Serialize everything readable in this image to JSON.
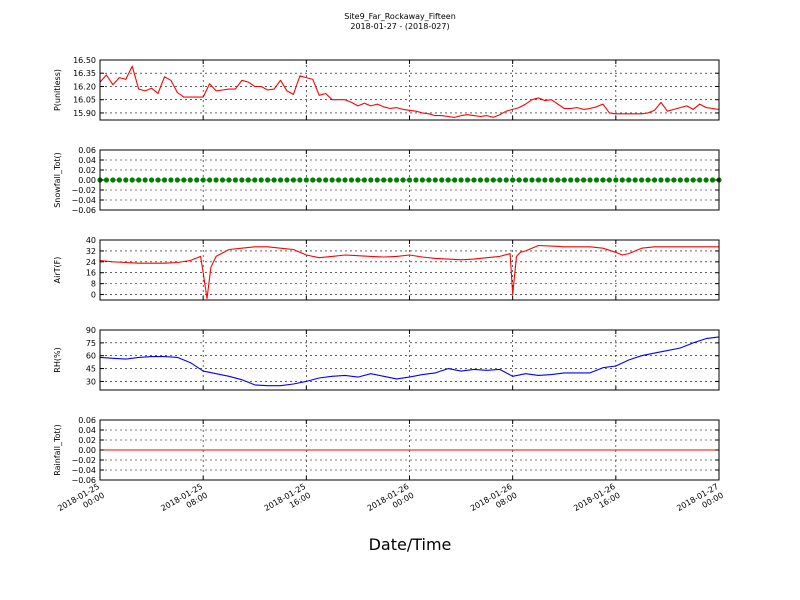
{
  "title": "Site9_Far_Rockaway_Fifteen",
  "subtitle": "2018-01-27 - (2018-027)",
  "xlabel": "Date/Time",
  "x_ticks": [
    [
      "2018-01-25",
      "00:00"
    ],
    [
      "2018-01-25",
      "08:00"
    ],
    [
      "2018-01-25",
      "16:00"
    ],
    [
      "2018-01-26",
      "00:00"
    ],
    [
      "2018-01-26",
      "08:00"
    ],
    [
      "2018-01-26",
      "16:00"
    ],
    [
      "2018-01-27",
      "00:00"
    ]
  ],
  "chart_data": [
    {
      "type": "line",
      "ylabel": "P(unitless)",
      "ylim": [
        15.82,
        16.5
      ],
      "yticks": [
        "16.50",
        "16.35",
        "16.20",
        "16.05",
        "15.90"
      ],
      "ytick_values": [
        16.5,
        16.35,
        16.2,
        16.05,
        15.9
      ],
      "color": "#ff0000",
      "marker": false,
      "grid": true,
      "x_hours": [
        0,
        0.5,
        1,
        1.5,
        2,
        2.5,
        3,
        3.5,
        4,
        4.5,
        5,
        5.5,
        6,
        6.5,
        7,
        7.5,
        8,
        8.5,
        9,
        9.5,
        10,
        10.5,
        11,
        11.5,
        12,
        12.5,
        13,
        13.5,
        14,
        14.5,
        15,
        15.5,
        16,
        16.5,
        17,
        17.5,
        18,
        18.5,
        19,
        19.5,
        20,
        20.5,
        21,
        21.5,
        22,
        22.5,
        23,
        23.5,
        24,
        24.5,
        25,
        25.5,
        26,
        26.5,
        27,
        27.5,
        28,
        28.5,
        29,
        29.5,
        30,
        30.5,
        31,
        31.5,
        32,
        32.5,
        33,
        33.5,
        34,
        34.5,
        35,
        35.5,
        36,
        36.5,
        37,
        37.5,
        38,
        38.5,
        39,
        39.5,
        40,
        40.5,
        41,
        41.5,
        42,
        42.5,
        43,
        43.5,
        44,
        44.5,
        45,
        45.5,
        46,
        46.5,
        47,
        47.5,
        48
      ],
      "values": [
        16.25,
        16.33,
        16.22,
        16.3,
        16.28,
        16.43,
        16.17,
        16.15,
        16.18,
        16.12,
        16.31,
        16.27,
        16.13,
        16.08,
        16.08,
        16.08,
        16.08,
        16.23,
        16.15,
        16.16,
        16.17,
        16.17,
        16.27,
        16.25,
        16.2,
        16.2,
        16.16,
        16.17,
        16.27,
        16.15,
        16.11,
        16.32,
        16.3,
        16.28,
        16.1,
        16.12,
        16.05,
        16.05,
        16.05,
        16.02,
        15.98,
        16.01,
        15.98,
        16.0,
        15.97,
        15.95,
        15.96,
        15.94,
        15.93,
        15.92,
        15.9,
        15.89,
        15.87,
        15.87,
        15.86,
        15.85,
        15.87,
        15.88,
        15.87,
        15.86,
        15.87,
        15.85,
        15.88,
        15.92,
        15.94,
        15.96,
        16.0,
        16.05,
        16.07,
        16.04,
        16.05,
        16.0,
        15.95,
        15.95,
        15.96,
        15.94,
        15.95,
        15.97,
        16.0,
        15.9,
        15.89,
        15.89,
        15.89,
        15.89,
        15.89,
        15.9,
        15.93,
        16.02,
        15.92,
        15.94,
        15.96,
        15.98,
        15.94,
        16.0,
        15.96,
        15.95,
        15.94
      ]
    },
    {
      "type": "scatter",
      "ylabel": "Snowfall_Tot()",
      "ylim": [
        -0.06,
        0.06
      ],
      "yticks": [
        "0.06",
        "0.04",
        "0.02",
        "0.00",
        "−0.02",
        "−0.04",
        "−0.06"
      ],
      "ytick_values": [
        0.06,
        0.04,
        0.02,
        0.0,
        -0.02,
        -0.04,
        -0.06
      ],
      "color": "#008000",
      "marker": true,
      "grid": true,
      "x_hours": [
        0,
        0.5,
        1,
        1.5,
        2,
        2.5,
        3,
        3.5,
        4,
        4.5,
        5,
        5.5,
        6,
        6.5,
        7,
        7.5,
        8,
        8.5,
        9,
        9.5,
        10,
        10.5,
        11,
        11.5,
        12,
        12.5,
        13,
        13.5,
        14,
        14.5,
        15,
        15.5,
        16,
        16.5,
        17,
        17.5,
        18,
        18.5,
        19,
        19.5,
        20,
        20.5,
        21,
        21.5,
        22,
        22.5,
        23,
        23.5,
        24,
        24.5,
        25,
        25.5,
        26,
        26.5,
        27,
        27.5,
        28,
        28.5,
        29,
        29.5,
        30,
        30.5,
        31,
        31.5,
        32,
        32.5,
        33,
        33.5,
        34,
        34.5,
        35,
        35.5,
        36,
        36.5,
        37,
        37.5,
        38,
        38.5,
        39,
        39.5,
        40,
        40.5,
        41,
        41.5,
        42,
        42.5,
        43,
        43.5,
        44,
        44.5,
        45,
        45.5,
        46,
        46.5,
        47,
        47.5,
        48
      ],
      "values": [
        0,
        0,
        0,
        0,
        0,
        0,
        0,
        0,
        0,
        0,
        0,
        0,
        0,
        0,
        0,
        0,
        0,
        0,
        0,
        0,
        0,
        0,
        0,
        0,
        0,
        0,
        0,
        0,
        0,
        0,
        0,
        0,
        0,
        0,
        0,
        0,
        0,
        0,
        0,
        0,
        0,
        0,
        0,
        0,
        0,
        0,
        0,
        0,
        0,
        0,
        0,
        0,
        0,
        0,
        0,
        0,
        0,
        0,
        0,
        0,
        0,
        0,
        0,
        0,
        0,
        0,
        0,
        0,
        0,
        0,
        0,
        0,
        0,
        0,
        0,
        0,
        0,
        0,
        0,
        0,
        0,
        0,
        0,
        0,
        0,
        0,
        0,
        0,
        0,
        0,
        0,
        0,
        0,
        0,
        0,
        0,
        0
      ]
    },
    {
      "type": "line",
      "ylabel": "AirT(F)",
      "ylim": [
        -4,
        40
      ],
      "yticks": [
        "40",
        "32",
        "24",
        "16",
        "8",
        "0"
      ],
      "ytick_values": [
        40,
        32,
        24,
        16,
        8,
        0
      ],
      "color": "#ff0000",
      "marker": false,
      "grid": true,
      "x_hours": [
        0,
        1,
        2,
        3,
        4,
        5,
        6,
        7,
        7.8,
        8,
        8.3,
        8.6,
        9,
        10,
        11,
        12,
        13,
        14,
        15,
        16,
        17,
        18,
        19,
        20,
        21,
        22,
        23,
        24,
        25,
        26,
        27,
        28,
        29,
        30,
        31,
        31.8,
        32,
        32.3,
        32.6,
        33,
        34,
        35,
        36,
        37,
        38,
        39,
        40,
        40.5,
        41,
        42,
        43,
        44,
        45,
        46,
        47,
        48
      ],
      "values": [
        25,
        24,
        23.5,
        23,
        23,
        23,
        23.5,
        25,
        28,
        16,
        -3,
        20,
        28,
        33,
        34,
        35,
        35,
        34,
        33,
        29,
        27,
        28,
        29,
        28.5,
        28,
        27.5,
        28,
        29,
        27.5,
        26.5,
        26,
        25.5,
        26,
        27,
        28,
        30,
        0,
        28,
        31,
        32,
        36,
        35.5,
        35,
        35,
        35,
        34,
        31,
        29,
        30,
        34,
        35,
        35,
        35,
        35,
        35,
        35
      ]
    },
    {
      "type": "line",
      "ylabel": "RH(%)",
      "ylim": [
        20,
        90
      ],
      "yticks": [
        "90",
        "75",
        "60",
        "45",
        "30"
      ],
      "ytick_values": [
        90,
        75,
        60,
        45,
        30
      ],
      "color": "#0000ff",
      "marker": false,
      "grid": true,
      "x_hours": [
        0,
        1,
        2,
        3,
        4,
        5,
        6,
        7,
        8,
        9,
        10,
        11,
        12,
        13,
        14,
        15,
        16,
        17,
        18,
        19,
        20,
        21,
        22,
        23,
        24,
        25,
        26,
        27,
        28,
        29,
        30,
        31,
        32,
        33,
        34,
        35,
        36,
        37,
        38,
        39,
        40,
        41,
        42,
        43,
        44,
        45,
        46,
        47,
        48
      ],
      "values": [
        58,
        57,
        56,
        58,
        59,
        59,
        58,
        52,
        42,
        39,
        36,
        32,
        26,
        25,
        25,
        27,
        30,
        34,
        36,
        37,
        35,
        39,
        36,
        33,
        35,
        38,
        40,
        45,
        42,
        44,
        43,
        44,
        36,
        39,
        37,
        38,
        40,
        40,
        40,
        46,
        48,
        55,
        60,
        63,
        66,
        69,
        75,
        80,
        82
      ]
    },
    {
      "type": "line",
      "ylabel": "Rainfall_Tot()",
      "ylim": [
        -0.06,
        0.06
      ],
      "yticks": [
        "0.06",
        "0.04",
        "0.02",
        "0.00",
        "−0.02",
        "−0.04",
        "−0.06"
      ],
      "ytick_values": [
        0.06,
        0.04,
        0.02,
        0.0,
        -0.02,
        -0.04,
        -0.06
      ],
      "color": "#ff0000",
      "marker": false,
      "grid": true,
      "x_hours": [
        0,
        48
      ],
      "values": [
        0,
        0
      ]
    }
  ]
}
